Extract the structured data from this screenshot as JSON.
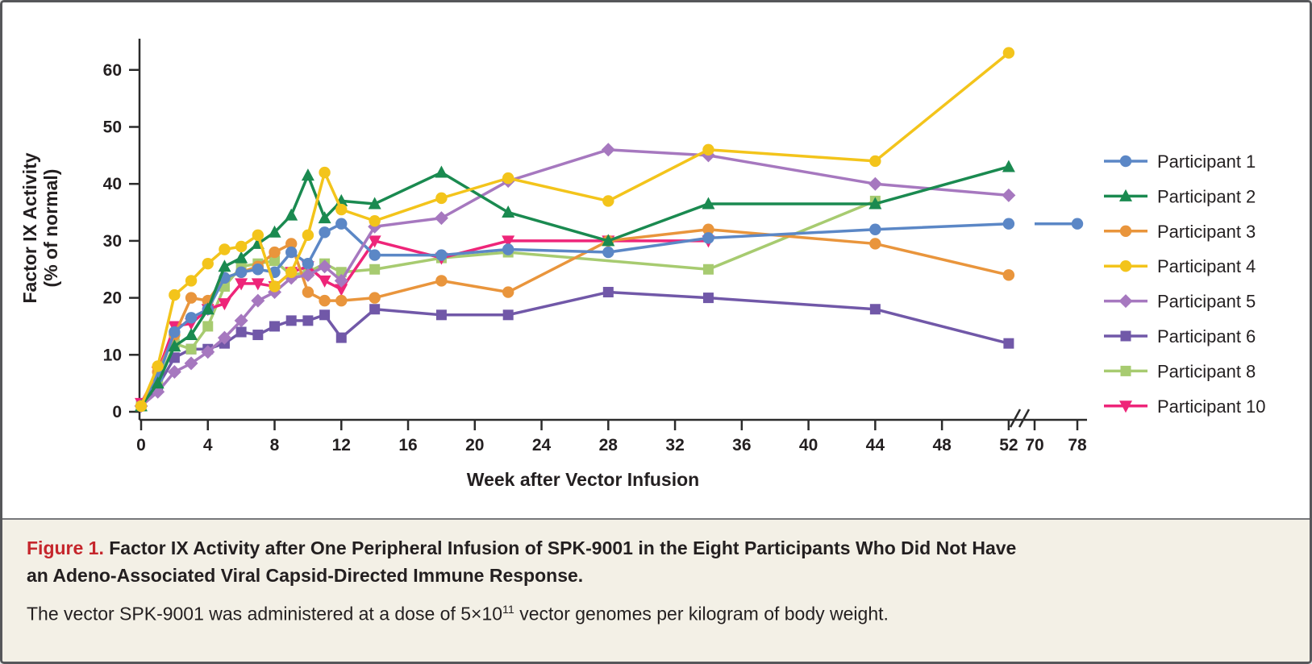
{
  "figure": {
    "caption": {
      "label": "Figure 1.",
      "title_line1": "Factor IX Activity after One Peripheral Infusion of SPK-9001 in the Eight Participants Who Did Not Have",
      "title_line2": "an Adeno-Associated Viral Capsid-Directed Immune Response.",
      "body_prefix": "The vector SPK-9001 was administered at a dose of 5×10",
      "body_sup": "11",
      "body_suffix": " vector genomes per kilogram of body weight."
    },
    "colors": {
      "label_red": "#c5262c",
      "caption_bg": "#f3f0e6",
      "frame_border": "#56575a",
      "divider": "#77787b",
      "axis": "#2b2b2b"
    }
  },
  "chart_data": {
    "type": "line",
    "title": "",
    "xlabel": "Week after Vector Infusion",
    "ylabel_line1": "Factor IX Activity",
    "ylabel_line2": "(% of normal)",
    "y_ticks": [
      0,
      10,
      20,
      30,
      40,
      50,
      60
    ],
    "x_ticks_main": [
      0,
      4,
      8,
      12,
      16,
      20,
      24,
      28,
      32,
      36,
      40,
      44,
      48,
      52
    ],
    "x_ticks_after_break": [
      70,
      78
    ],
    "axis_break_between": [
      52,
      70
    ],
    "ylim": [
      0,
      65
    ],
    "grid": false,
    "legend_position": "right",
    "series": [
      {
        "name": "Participant 1",
        "color": "#5b87c6",
        "marker": "circle",
        "points": [
          [
            0,
            1
          ],
          [
            1,
            6
          ],
          [
            2,
            14
          ],
          [
            3,
            16.5
          ],
          [
            4,
            18
          ],
          [
            5,
            23.5
          ],
          [
            6,
            24.5
          ],
          [
            7,
            25
          ],
          [
            8,
            24.5
          ],
          [
            9,
            28
          ],
          [
            10,
            26
          ],
          [
            11,
            31.5
          ],
          [
            12,
            33
          ],
          [
            14,
            27.5
          ],
          [
            18,
            27.5
          ],
          [
            22,
            28.5
          ],
          [
            28,
            28
          ],
          [
            34,
            30.5
          ],
          [
            44,
            32
          ],
          [
            52,
            33
          ]
        ],
        "post_break": [
          [
            70,
            33,
            false
          ],
          [
            78,
            33,
            true
          ]
        ]
      },
      {
        "name": "Participant 2",
        "color": "#1a8a50",
        "marker": "triangle-up",
        "points": [
          [
            0,
            1
          ],
          [
            1,
            5
          ],
          [
            2,
            11.5
          ],
          [
            3,
            13.5
          ],
          [
            4,
            18
          ],
          [
            5,
            25.5
          ],
          [
            6,
            27
          ],
          [
            7,
            29.5
          ],
          [
            8,
            31.5
          ],
          [
            9,
            34.5
          ],
          [
            10,
            41.5
          ],
          [
            11,
            34
          ],
          [
            12,
            37
          ],
          [
            14,
            36.5
          ],
          [
            18,
            42
          ],
          [
            22,
            35
          ],
          [
            28,
            30
          ],
          [
            34,
            36.5
          ],
          [
            44,
            36.5
          ],
          [
            52,
            43
          ]
        ]
      },
      {
        "name": "Participant 3",
        "color": "#e9953c",
        "marker": "circle",
        "points": [
          [
            0,
            1
          ],
          [
            1,
            7
          ],
          [
            2,
            13.5
          ],
          [
            3,
            20
          ],
          [
            4,
            19.5
          ],
          [
            5,
            23.5
          ],
          [
            6,
            24.5
          ],
          [
            7,
            25.5
          ],
          [
            8,
            28
          ],
          [
            9,
            29.5
          ],
          [
            10,
            21
          ],
          [
            11,
            19.5
          ],
          [
            12,
            19.5
          ],
          [
            14,
            20
          ],
          [
            18,
            23
          ],
          [
            22,
            21
          ],
          [
            28,
            30
          ],
          [
            34,
            32
          ],
          [
            44,
            29.5
          ],
          [
            52,
            24
          ]
        ]
      },
      {
        "name": "Participant 4",
        "color": "#f3c41b",
        "marker": "circle",
        "points": [
          [
            0,
            1
          ],
          [
            1,
            8
          ],
          [
            2,
            20.5
          ],
          [
            3,
            23
          ],
          [
            4,
            26
          ],
          [
            5,
            28.5
          ],
          [
            6,
            29
          ],
          [
            7,
            31
          ],
          [
            8,
            22
          ],
          [
            9,
            24.5
          ],
          [
            10,
            31
          ],
          [
            11,
            42
          ],
          [
            12,
            35.5
          ],
          [
            14,
            33.5
          ],
          [
            18,
            37.5
          ],
          [
            22,
            41
          ],
          [
            28,
            37
          ],
          [
            34,
            46
          ],
          [
            44,
            44
          ],
          [
            52,
            63
          ]
        ]
      },
      {
        "name": "Participant 5",
        "color": "#a678bf",
        "marker": "diamond",
        "points": [
          [
            0,
            1
          ],
          [
            1,
            3.5
          ],
          [
            2,
            7
          ],
          [
            3,
            8.5
          ],
          [
            4,
            10.5
          ],
          [
            5,
            13
          ],
          [
            6,
            16
          ],
          [
            7,
            19.5
          ],
          [
            8,
            21
          ],
          [
            9,
            23.5
          ],
          [
            10,
            24
          ],
          [
            11,
            25.5
          ],
          [
            12,
            23
          ],
          [
            14,
            32.5
          ],
          [
            18,
            34
          ],
          [
            22,
            40.5
          ],
          [
            28,
            46
          ],
          [
            34,
            45
          ],
          [
            44,
            40
          ],
          [
            52,
            38
          ]
        ]
      },
      {
        "name": "Participant 6",
        "color": "#7158a8",
        "marker": "square",
        "points": [
          [
            0,
            1
          ],
          [
            1,
            4.5
          ],
          [
            2,
            9.5
          ],
          [
            3,
            11
          ],
          [
            4,
            11
          ],
          [
            5,
            12
          ],
          [
            6,
            14
          ],
          [
            7,
            13.5
          ],
          [
            8,
            15
          ],
          [
            9,
            16
          ],
          [
            10,
            16
          ],
          [
            11,
            17
          ],
          [
            12,
            13
          ],
          [
            14,
            18
          ],
          [
            18,
            17
          ],
          [
            22,
            17
          ],
          [
            28,
            21
          ],
          [
            34,
            20
          ],
          [
            44,
            18
          ],
          [
            52,
            12
          ]
        ]
      },
      {
        "name": "Participant 8",
        "color": "#a7cb70",
        "marker": "square",
        "points": [
          [
            0,
            1
          ],
          [
            1,
            5
          ],
          [
            2,
            12
          ],
          [
            3,
            11
          ],
          [
            4,
            15
          ],
          [
            5,
            22
          ],
          [
            6,
            25.5
          ],
          [
            7,
            26
          ],
          [
            8,
            26.5
          ],
          [
            9,
            24
          ],
          [
            10,
            24.5
          ],
          [
            11,
            26
          ],
          [
            12,
            24.5
          ],
          [
            14,
            25
          ],
          [
            18,
            27
          ],
          [
            22,
            28
          ],
          [
            34,
            25
          ],
          [
            44,
            37
          ]
        ]
      },
      {
        "name": "Participant 10",
        "color": "#ee2579",
        "marker": "triangle-down",
        "points": [
          [
            0,
            1.5
          ],
          [
            1,
            7
          ],
          [
            2,
            15
          ],
          [
            3,
            15.5
          ],
          [
            4,
            18
          ],
          [
            5,
            19
          ],
          [
            6,
            22.5
          ],
          [
            7,
            22.5
          ],
          [
            8,
            22
          ],
          [
            9,
            24.5
          ],
          [
            10,
            25.5
          ],
          [
            11,
            23
          ],
          [
            12,
            21.5
          ],
          [
            14,
            30
          ],
          [
            18,
            27
          ],
          [
            22,
            30
          ],
          [
            28,
            30
          ],
          [
            34,
            30
          ]
        ]
      }
    ]
  }
}
